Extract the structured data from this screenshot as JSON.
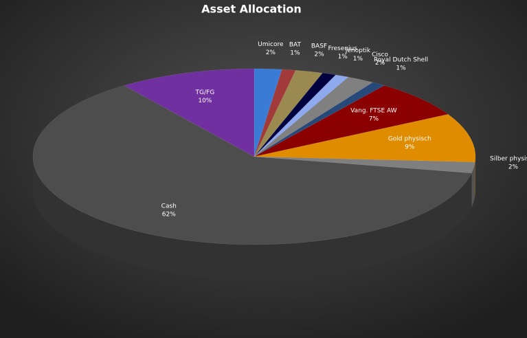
{
  "chart_data": {
    "type": "pie3d",
    "title": "Asset Allocation",
    "categories": [
      "Umicore",
      "BAT",
      "BASF",
      "Fresenius",
      "Jenoptik",
      "Cisco",
      "Royal Dutch Shell",
      "Vang. FTSE AW",
      "Gold physisch",
      "Silber physisch",
      "Cash",
      "TG/FG"
    ],
    "values": [
      2,
      1,
      2,
      1,
      1,
      2,
      1,
      7,
      9,
      2,
      62,
      10
    ],
    "value_labels": [
      "2%",
      "1%",
      "2%",
      "1%",
      "1%",
      "2%",
      "1%",
      "7%",
      "9%",
      "2%",
      "62%",
      "10%"
    ],
    "colors": [
      "#3a7bd5",
      "#a33a3a",
      "#9a8a50",
      "#000040",
      "#8fa9ee",
      "#808080",
      "#27497a",
      "#8b0000",
      "#e08c00",
      "#7f7f7f",
      "#4d4d4d",
      "#7030a0"
    ]
  }
}
